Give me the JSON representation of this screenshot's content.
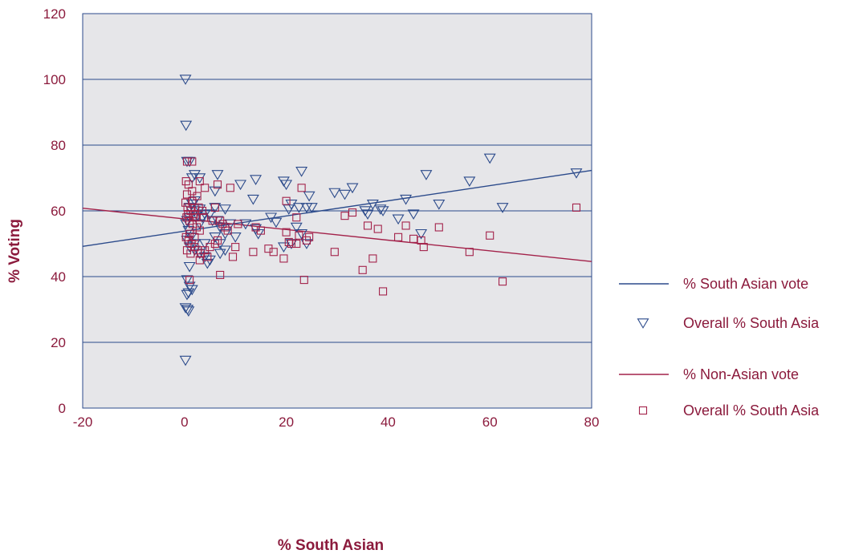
{
  "chart_data": {
    "type": "scatter",
    "xlabel": "% South Asian",
    "ylabel": "% Voting",
    "xlim": [
      -20,
      80
    ],
    "ylim": [
      0,
      120
    ],
    "xticks": [
      -20,
      0,
      20,
      40,
      60,
      80
    ],
    "yticks": [
      0,
      20,
      40,
      60,
      80,
      100,
      120
    ],
    "grid": "horizontal",
    "legend_position": "right",
    "colors": {
      "south_asian": "#2b4a8b",
      "non_asian": "#a3224a",
      "plot_bg": "#e6e6e9",
      "text": "#8b1a3c"
    },
    "series": [
      {
        "name": "Overall % South Asia",
        "marker": "triangle-down",
        "color": "#2b4a8b",
        "points": [
          [
            0.2,
            100
          ],
          [
            0.3,
            86
          ],
          [
            0.5,
            75
          ],
          [
            1,
            75
          ],
          [
            1.5,
            70
          ],
          [
            2,
            71
          ],
          [
            3,
            70
          ],
          [
            6.5,
            71
          ],
          [
            11,
            68
          ],
          [
            14,
            69.5
          ],
          [
            19.5,
            69
          ],
          [
            20,
            68
          ],
          [
            23,
            72
          ],
          [
            29.5,
            65.5
          ],
          [
            31.5,
            65
          ],
          [
            33,
            67
          ],
          [
            47.5,
            71
          ],
          [
            56,
            69
          ],
          [
            60,
            76
          ],
          [
            62.5,
            61
          ],
          [
            77,
            71.5
          ],
          [
            50,
            62
          ],
          [
            43.5,
            63.5
          ],
          [
            45,
            59
          ],
          [
            42,
            57.5
          ],
          [
            37,
            62
          ],
          [
            38.5,
            60.5
          ],
          [
            39,
            60
          ],
          [
            36,
            59
          ],
          [
            35.5,
            60
          ],
          [
            24,
            61
          ],
          [
            25,
            61
          ],
          [
            24.5,
            64.5
          ],
          [
            22.5,
            61
          ],
          [
            21,
            62
          ],
          [
            20.5,
            60.5
          ],
          [
            17,
            58
          ],
          [
            18,
            56.5
          ],
          [
            13.5,
            63.5
          ],
          [
            14.5,
            53
          ],
          [
            14,
            54.5
          ],
          [
            12,
            56
          ],
          [
            9,
            56
          ],
          [
            8,
            60.5
          ],
          [
            7,
            55
          ],
          [
            6.5,
            57
          ],
          [
            6,
            61
          ],
          [
            5.5,
            57
          ],
          [
            5,
            59
          ],
          [
            4,
            59
          ],
          [
            3.5,
            58
          ],
          [
            3,
            60.5
          ],
          [
            2.5,
            58.5
          ],
          [
            2,
            60
          ],
          [
            1.5,
            62
          ],
          [
            1,
            58
          ],
          [
            0.5,
            57
          ],
          [
            0.3,
            56
          ],
          [
            0.8,
            54
          ],
          [
            1.3,
            52
          ],
          [
            0.5,
            51
          ],
          [
            1,
            49
          ],
          [
            2,
            48
          ],
          [
            3,
            47
          ],
          [
            4,
            46
          ],
          [
            5,
            45
          ],
          [
            4.5,
            44
          ],
          [
            1,
            43
          ],
          [
            2,
            50
          ],
          [
            4,
            50
          ],
          [
            6,
            52
          ],
          [
            7,
            50
          ],
          [
            8,
            48
          ],
          [
            7,
            47
          ],
          [
            10,
            52
          ],
          [
            19.5,
            49
          ],
          [
            21,
            50
          ],
          [
            22,
            55
          ],
          [
            23,
            53
          ],
          [
            24,
            50
          ],
          [
            0.5,
            39
          ],
          [
            1,
            37
          ],
          [
            1.5,
            36
          ],
          [
            0.8,
            35
          ],
          [
            0.5,
            34.5
          ],
          [
            0.2,
            30.5
          ],
          [
            0.6,
            30
          ],
          [
            0.8,
            29.5
          ],
          [
            0.2,
            14.5
          ],
          [
            6,
            66
          ],
          [
            8,
            53
          ],
          [
            1,
            61
          ],
          [
            2,
            63
          ],
          [
            3,
            56
          ],
          [
            46.5,
            53
          ]
        ]
      },
      {
        "name": "Overall % South Asia",
        "marker": "square",
        "color": "#a3224a",
        "points": [
          [
            0.5,
            75
          ],
          [
            1.5,
            75
          ],
          [
            0.3,
            69
          ],
          [
            0.8,
            68
          ],
          [
            1.5,
            66
          ],
          [
            2.5,
            64.5
          ],
          [
            3,
            69
          ],
          [
            0.2,
            62.5
          ],
          [
            0.6,
            61
          ],
          [
            1.2,
            60
          ],
          [
            1.8,
            59
          ],
          [
            2.2,
            58
          ],
          [
            2.8,
            61
          ],
          [
            3.5,
            60
          ],
          [
            4,
            67
          ],
          [
            6,
            61
          ],
          [
            6.5,
            68
          ],
          [
            9,
            67
          ],
          [
            0.4,
            58
          ],
          [
            1,
            57
          ],
          [
            1.6,
            56
          ],
          [
            2.4,
            55
          ],
          [
            3,
            54
          ],
          [
            0.3,
            52
          ],
          [
            0.8,
            51
          ],
          [
            1.4,
            50
          ],
          [
            2,
            49
          ],
          [
            2.6,
            48
          ],
          [
            3.2,
            47
          ],
          [
            0.5,
            48
          ],
          [
            1.2,
            47
          ],
          [
            3,
            45
          ],
          [
            4.5,
            46
          ],
          [
            5,
            49
          ],
          [
            6,
            50
          ],
          [
            6.5,
            51
          ],
          [
            7,
            57
          ],
          [
            7.5,
            56
          ],
          [
            8,
            55
          ],
          [
            8.5,
            54
          ],
          [
            10,
            49
          ],
          [
            10.5,
            56
          ],
          [
            9.5,
            46
          ],
          [
            7,
            40.5
          ],
          [
            13.5,
            47.5
          ],
          [
            14,
            55
          ],
          [
            15,
            54
          ],
          [
            16.5,
            48.5
          ],
          [
            17.5,
            47.5
          ],
          [
            19.5,
            45.5
          ],
          [
            20,
            53.5
          ],
          [
            20.5,
            50.5
          ],
          [
            21,
            50
          ],
          [
            22,
            50
          ],
          [
            22.5,
            52.5
          ],
          [
            23,
            67
          ],
          [
            20,
            63
          ],
          [
            22,
            58
          ],
          [
            24,
            51
          ],
          [
            24.5,
            52
          ],
          [
            23.5,
            39
          ],
          [
            29.5,
            47.5
          ],
          [
            31.5,
            58.5
          ],
          [
            33,
            59.5
          ],
          [
            35,
            42
          ],
          [
            36,
            55.5
          ],
          [
            37,
            45.5
          ],
          [
            38,
            54.5
          ],
          [
            39,
            35.5
          ],
          [
            42,
            52
          ],
          [
            43.5,
            55.5
          ],
          [
            45,
            51.5
          ],
          [
            46.5,
            51
          ],
          [
            47,
            49
          ],
          [
            50,
            55
          ],
          [
            56,
            47.5
          ],
          [
            60,
            52.5
          ],
          [
            62.5,
            38.5
          ],
          [
            77,
            61
          ],
          [
            1,
            39
          ],
          [
            0.5,
            65
          ],
          [
            1.5,
            63
          ],
          [
            2,
            61
          ],
          [
            0.7,
            59
          ],
          [
            1.7,
            58
          ],
          [
            3.8,
            58
          ],
          [
            5.5,
            57
          ],
          [
            2,
            52
          ],
          [
            1,
            53
          ],
          [
            4,
            48
          ]
        ]
      }
    ],
    "trend_lines": [
      {
        "name": "% South Asian vote",
        "color": "#2b4a8b",
        "x": [
          -20,
          80
        ],
        "y": [
          49.2,
          72.3
        ]
      },
      {
        "name": "% Non-Asian vote",
        "color": "#a3224a",
        "x": [
          -20,
          80
        ],
        "y": [
          60.8,
          44.6
        ]
      }
    ],
    "legend": [
      {
        "kind": "line",
        "label": "% South Asian vote",
        "color": "#2b4a8b"
      },
      {
        "kind": "triangle-down",
        "label": "Overall % South Asia",
        "color": "#2b4a8b"
      },
      {
        "kind": "line",
        "label": "% Non-Asian vote",
        "color": "#a3224a"
      },
      {
        "kind": "square",
        "label": "Overall % South Asia",
        "color": "#a3224a"
      }
    ]
  }
}
